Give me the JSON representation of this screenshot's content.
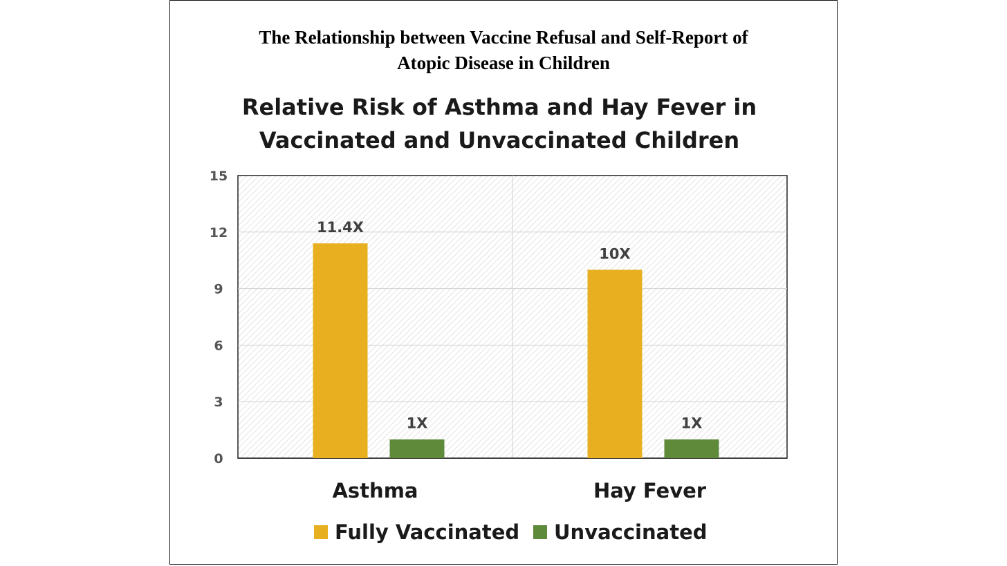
{
  "header": {
    "title_line1": "The Relationship between Vaccine Refusal and Self-Report of",
    "title_line2": "Atopic Disease in Children"
  },
  "chart_data": {
    "type": "bar",
    "title_lines": [
      "Relative Risk of Asthma and Hay Fever in",
      "Vaccinated and Unvaccinated Children"
    ],
    "categories": [
      "Asthma",
      "Hay Fever"
    ],
    "series": [
      {
        "name": "Fully Vaccinated",
        "values": [
          11.4,
          10
        ],
        "labels": [
          "11.4X",
          "10X"
        ],
        "color": "#E8B020"
      },
      {
        "name": "Unvaccinated",
        "values": [
          1,
          1
        ],
        "labels": [
          "1X",
          "1X"
        ],
        "color": "#5E8A3A"
      }
    ],
    "ylim": [
      0,
      15
    ],
    "yticks": [
      0,
      3,
      6,
      9,
      12,
      15
    ],
    "grid": true,
    "legend": "bottom",
    "xlabel": "",
    "ylabel": ""
  }
}
